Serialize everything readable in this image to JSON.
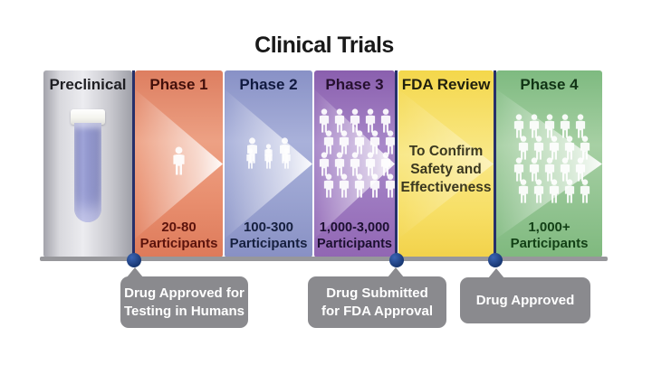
{
  "title": "Clinical Trials",
  "columns": [
    {
      "id": "preclinical",
      "title": "Preclinical"
    },
    {
      "id": "phase1",
      "title": "Phase 1",
      "range": "20-80",
      "unit": "Participants"
    },
    {
      "id": "phase2",
      "title": "Phase 2",
      "range": "100-300",
      "unit": "Participants"
    },
    {
      "id": "phase3",
      "title": "Phase 3",
      "range": "1,000-3,000",
      "unit": "Participants"
    },
    {
      "id": "fda_review",
      "title": "FDA Review",
      "lines": [
        "To Confirm",
        "Safety and",
        "Effectiveness"
      ]
    },
    {
      "id": "phase4",
      "title": "Phase 4",
      "range": "1,000+",
      "unit": "Participants"
    }
  ],
  "callouts": [
    {
      "lines": [
        "Drug Approved for",
        "Testing in Humans"
      ]
    },
    {
      "lines": [
        "Drug Submitted",
        "for FDA Approval"
      ]
    },
    {
      "lines": [
        "Drug Approved"
      ]
    }
  ],
  "colors": {
    "preclinical": "#c9c9cf",
    "phase1": "#e08a6c",
    "phase2": "#98a1cf",
    "phase3": "#9d79c0",
    "fda_review": "#f7df66",
    "phase4": "#93c492",
    "milestone_dot": "#1d4693",
    "milestone_line": "#27306a",
    "callout_bg": "#8a8a8e",
    "timeline_bar": "#97979b"
  }
}
